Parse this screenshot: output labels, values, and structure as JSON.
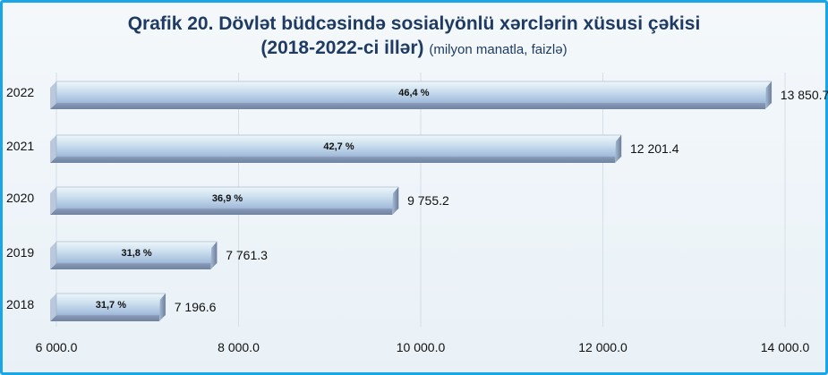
{
  "title": {
    "line1": "Qrafik 20. Dövlət büdcəsində sosialyönlü xərclərin xüsusi çəkisi",
    "line2_bold": "(2018-2022-ci illər)",
    "line2_unit": "(milyon manatla, faizlə)"
  },
  "chart_data": {
    "type": "bar",
    "orientation": "horizontal",
    "categories": [
      "2022",
      "2021",
      "2020",
      "2019",
      "2018"
    ],
    "values": [
      13850.7,
      12201.4,
      9755.2,
      7761.3,
      7196.6
    ],
    "value_labels": [
      "13 850.7",
      "12 201.4",
      "9 755.2",
      "7 761.3",
      "7 196.6"
    ],
    "percent_labels": [
      "46,4 %",
      "42,7 %",
      "36,9 %",
      "31,8 %",
      "31,7 %"
    ],
    "xlim": [
      6000,
      14000
    ],
    "x_ticks": [
      6000,
      8000,
      10000,
      12000,
      14000
    ],
    "x_tick_labels": [
      "6 000.0",
      "8 000.0",
      "10 000.0",
      "12 000.0",
      "14 000.0"
    ],
    "grid": true,
    "colors": {
      "bar_top": "#e3f0f7",
      "bar_mid": "#b7d0ea",
      "bar_bottom": "#7e93b3",
      "title": "#1f3b63",
      "frame": "#19a6e6"
    }
  }
}
